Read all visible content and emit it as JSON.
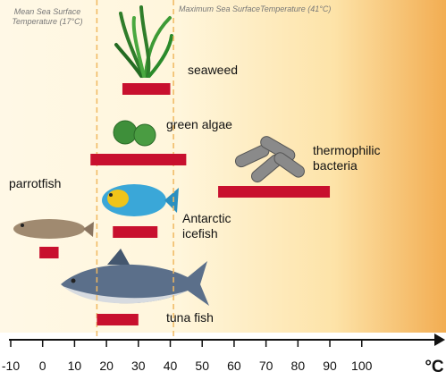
{
  "chart_data": {
    "type": "range_bar",
    "categories": [
      "seaweed",
      "green algae",
      "thermophilic bacteria",
      "parrotfish",
      "Antarctic icefish",
      "tuna fish"
    ],
    "values": [
      [
        25,
        40
      ],
      [
        15,
        45
      ],
      [
        55,
        90
      ],
      [
        22,
        36
      ],
      [
        -1,
        5
      ],
      [
        17,
        30
      ]
    ],
    "color": "#c8102e",
    "xlim": [
      -10,
      125
    ],
    "xticks": [
      -10,
      0,
      10,
      20,
      30,
      40,
      50,
      60,
      70,
      80,
      90,
      100
    ],
    "xlabel": "°C",
    "reference_lines": [
      {
        "value": 17,
        "label": "Mean Sea Surface Temperature (17°C)"
      },
      {
        "value": 41,
        "label": "Maximum Sea SurfaceTemperature (41°C)"
      }
    ]
  }
}
